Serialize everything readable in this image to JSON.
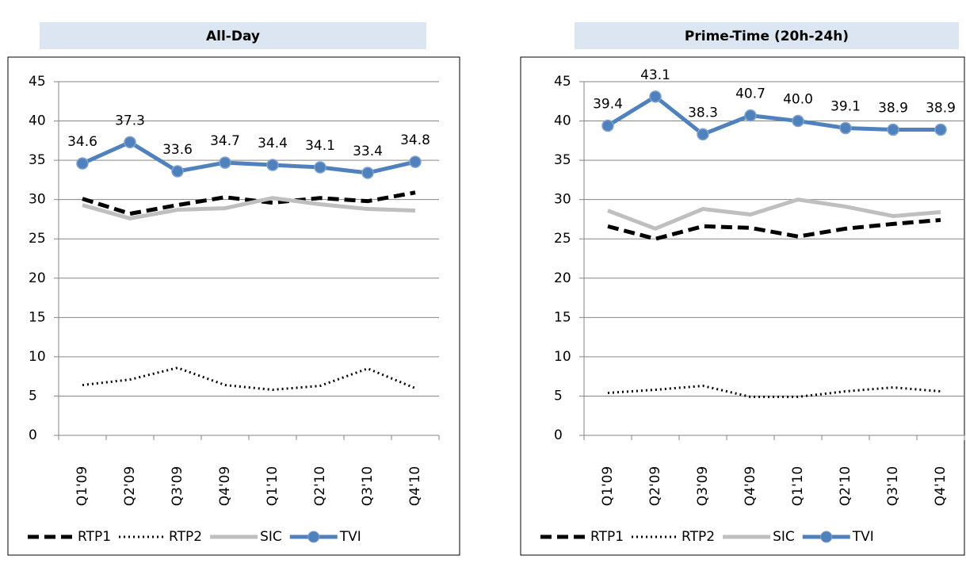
{
  "chart_data": [
    {
      "type": "line",
      "title": "All-Day",
      "categories": [
        "Q1'09",
        "Q2'09",
        "Q3'09",
        "Q4'09",
        "Q1'10",
        "Q2'10",
        "Q3'10",
        "Q4'10"
      ],
      "ylim": [
        0,
        45
      ],
      "yticks": [
        0,
        5,
        10,
        15,
        20,
        25,
        30,
        35,
        40,
        45
      ],
      "grid": true,
      "series": [
        {
          "name": "RTP1",
          "color": "#000000",
          "dash": "dashed",
          "values": [
            30.1,
            28.2,
            29.3,
            30.3,
            29.6,
            30.2,
            29.8,
            30.9
          ]
        },
        {
          "name": "RTP2",
          "color": "#000000",
          "dash": "dotted",
          "values": [
            6.4,
            7.1,
            8.6,
            6.4,
            5.8,
            6.3,
            8.5,
            6.0
          ]
        },
        {
          "name": "SIC",
          "color": "#bfbfbf",
          "dash": "solid",
          "values": [
            29.3,
            27.6,
            28.7,
            28.9,
            30.2,
            29.4,
            28.8,
            28.6
          ]
        },
        {
          "name": "TVI",
          "color": "#4f81bd",
          "dash": "solid",
          "marker": true,
          "data_labels": true,
          "values": [
            34.6,
            37.3,
            33.6,
            34.7,
            34.4,
            34.1,
            33.4,
            34.8
          ]
        }
      ]
    },
    {
      "type": "line",
      "title": "Prime-Time (20h-24h)",
      "categories": [
        "Q1'09",
        "Q2'09",
        "Q3'09",
        "Q4'09",
        "Q1'10",
        "Q2'10",
        "Q3'10",
        "Q4'10"
      ],
      "ylim": [
        0,
        45
      ],
      "yticks": [
        0,
        5,
        10,
        15,
        20,
        25,
        30,
        35,
        40,
        45
      ],
      "grid": true,
      "series": [
        {
          "name": "RTP1",
          "color": "#000000",
          "dash": "dashed",
          "values": [
            26.6,
            25.0,
            26.6,
            26.4,
            25.3,
            26.3,
            26.9,
            27.4
          ]
        },
        {
          "name": "RTP2",
          "color": "#000000",
          "dash": "dotted",
          "values": [
            5.4,
            5.8,
            6.3,
            4.9,
            4.9,
            5.6,
            6.1,
            5.6
          ]
        },
        {
          "name": "SIC",
          "color": "#bfbfbf",
          "dash": "solid",
          "values": [
            28.6,
            26.3,
            28.8,
            28.1,
            30.0,
            29.1,
            27.9,
            28.4
          ]
        },
        {
          "name": "TVI",
          "color": "#4f81bd",
          "dash": "solid",
          "marker": true,
          "data_labels": true,
          "values": [
            39.4,
            43.1,
            38.3,
            40.7,
            40.0,
            39.1,
            38.9,
            38.9
          ],
          "value_labels": [
            "39.4",
            "43.1",
            "38.3",
            "40.7",
            "40.0",
            "39.1",
            "38.9",
            "38.9"
          ]
        }
      ]
    }
  ]
}
